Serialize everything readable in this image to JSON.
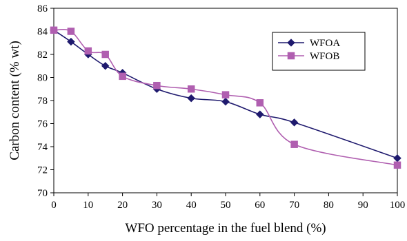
{
  "chart_data": {
    "type": "line",
    "title": "",
    "xlabel": "WFO percentage in the fuel  blend (%)",
    "ylabel": "Carbon content (% wt)",
    "xlim": [
      0,
      100
    ],
    "ylim": [
      70,
      86
    ],
    "x_ticks": [
      0,
      10,
      20,
      30,
      40,
      50,
      60,
      70,
      80,
      90,
      100
    ],
    "y_ticks": [
      70,
      72,
      74,
      76,
      78,
      80,
      82,
      84,
      86
    ],
    "grid": false,
    "smooth": true,
    "legend_position": "top-right",
    "series": [
      {
        "name": "WFOA",
        "color": "#1f1a6e",
        "marker": "diamond",
        "x": [
          0,
          5,
          10,
          15,
          20,
          30,
          40,
          50,
          60,
          70,
          100
        ],
        "y": [
          84.1,
          83.1,
          82.0,
          81.0,
          80.4,
          79.0,
          78.2,
          77.9,
          76.8,
          76.1,
          73.0
        ]
      },
      {
        "name": "WFOB",
        "color": "#b05fb0",
        "marker": "square",
        "x": [
          0,
          5,
          10,
          15,
          20,
          30,
          40,
          50,
          60,
          70,
          100
        ],
        "y": [
          84.1,
          84.0,
          82.3,
          82.0,
          80.1,
          79.3,
          79.0,
          78.5,
          77.8,
          74.2,
          72.4
        ]
      }
    ]
  }
}
